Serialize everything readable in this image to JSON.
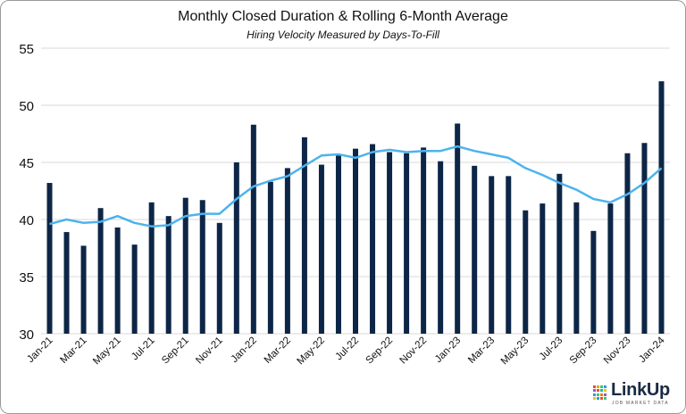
{
  "chart_data": {
    "type": "bar",
    "title": "Monthly Closed Duration & Rolling 6-Month Average",
    "subtitle": "Hiring Velocity Measured by Days-To-Fill",
    "ylim": [
      30,
      55
    ],
    "yticks": [
      30,
      35,
      40,
      45,
      50,
      55
    ],
    "grid": true,
    "categories": [
      "Jan-21",
      "Feb-21",
      "Mar-21",
      "Apr-21",
      "May-21",
      "Jun-21",
      "Jul-21",
      "Aug-21",
      "Sep-21",
      "Oct-21",
      "Nov-21",
      "Dec-21",
      "Jan-22",
      "Feb-22",
      "Mar-22",
      "Apr-22",
      "May-22",
      "Jun-22",
      "Jul-22",
      "Aug-22",
      "Sep-22",
      "Oct-22",
      "Nov-22",
      "Dec-22",
      "Jan-23",
      "Feb-23",
      "Mar-23",
      "Apr-23",
      "May-23",
      "Jun-23",
      "Jul-23",
      "Aug-23",
      "Sep-23",
      "Oct-23",
      "Nov-23",
      "Dec-23",
      "Jan-24"
    ],
    "tick_labels": [
      "Jan-21",
      "Mar-21",
      "May-21",
      "Jul-21",
      "Sep-21",
      "Nov-21",
      "Jan-22",
      "Mar-22",
      "May-22",
      "Jul-22",
      "Sep-22",
      "Nov-22",
      "Jan-23",
      "Mar-23",
      "May-23",
      "Jul-23",
      "Sep-23",
      "Nov-23",
      "Jan-24"
    ],
    "series": [
      {
        "type": "bar",
        "color": "#0d2647",
        "values": [
          43.2,
          38.9,
          37.7,
          41.0,
          39.3,
          37.8,
          41.5,
          40.3,
          41.9,
          41.7,
          39.7,
          45.0,
          48.3,
          43.3,
          44.5,
          47.2,
          44.8,
          45.6,
          46.2,
          46.6,
          45.9,
          45.8,
          46.3,
          45.1,
          48.4,
          44.7,
          43.8,
          43.8,
          40.8,
          41.4,
          44.0,
          41.5,
          39.0,
          41.4,
          45.8,
          46.7,
          52.1
        ]
      },
      {
        "type": "line",
        "color": "#4db3ec",
        "values": [
          39.6,
          40.0,
          39.7,
          39.8,
          40.3,
          39.7,
          39.4,
          39.5,
          40.3,
          40.5,
          40.5,
          41.8,
          42.9,
          43.4,
          43.8,
          44.7,
          45.6,
          45.7,
          45.4,
          45.9,
          46.1,
          45.9,
          46.0,
          46.0,
          46.4,
          46.0,
          45.7,
          45.4,
          44.5,
          43.9,
          43.2,
          42.6,
          41.8,
          41.5,
          42.2,
          43.2,
          44.5
        ]
      }
    ]
  },
  "brand": {
    "name": "LinkUp",
    "tagline": "JOB MARKET DATA",
    "colors": [
      "#e84c3d",
      "#f39c12",
      "#2ecc71",
      "#3498db",
      "#9b59b6",
      "#e84c3d",
      "#1abc9c",
      "#f1c40f",
      "#3498db",
      "#2ecc71",
      "#e67e22",
      "#9b59b6",
      "#f1c40f",
      "#3498db",
      "#e84c3d",
      "#2ecc71"
    ]
  }
}
